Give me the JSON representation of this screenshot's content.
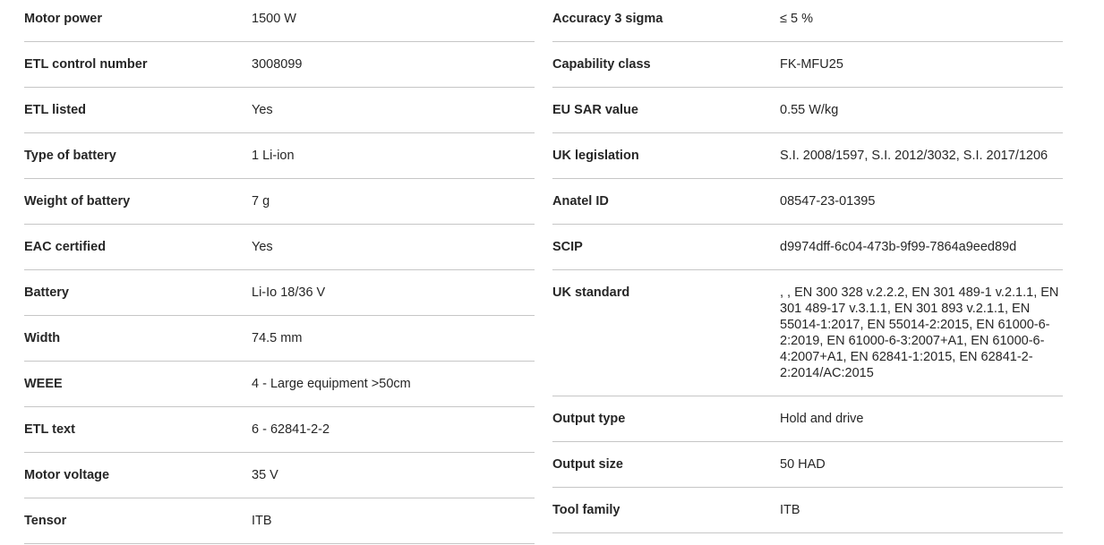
{
  "spec_table": {
    "left_rows": [
      {
        "label": "Motor power",
        "value": "1500 W"
      },
      {
        "label": "ETL control number",
        "value": "3008099"
      },
      {
        "label": "ETL listed",
        "value": "Yes"
      },
      {
        "label": "Type of battery",
        "value": "1 Li-ion"
      },
      {
        "label": "Weight of battery",
        "value": "7 g"
      },
      {
        "label": "EAC certified",
        "value": "Yes"
      },
      {
        "label": "Battery",
        "value": "Li-Io 18/36 V"
      },
      {
        "label": "Width",
        "value": "74.5 mm"
      },
      {
        "label": "WEEE",
        "value": "4 - Large equipment >50cm"
      },
      {
        "label": "ETL text",
        "value": "6 - 62841-2-2"
      },
      {
        "label": "Motor voltage",
        "value": "35 V"
      },
      {
        "label": "Tensor",
        "value": "ITB"
      }
    ],
    "right_rows": [
      {
        "label": "Accuracy 3 sigma",
        "value": "≤ 5 %"
      },
      {
        "label": "Capability class",
        "value": "FK-MFU25"
      },
      {
        "label": "EU SAR value",
        "value": "0.55 W/kg"
      },
      {
        "label": "UK legislation",
        "value": "S.I. 2008/1597, S.I. 2012/3032, S.I. 2017/1206"
      },
      {
        "label": "Anatel ID",
        "value": "08547-23-01395"
      },
      {
        "label": "SCIP",
        "value": "d9974dff-6c04-473b-9f99-7864a9eed89d"
      },
      {
        "label": "UK standard",
        "value": ", , EN 300 328 v.2.2.2, EN 301 489-1 v.2.1.1, EN 301 489-17 v.3.1.1, EN 301 893 v.2.1.1, EN 55014-1:2017, EN 55014-2:2015, EN 61000-6-2:2019, EN 61000-6-3:2007+A1, EN 61000-6-4:2007+A1, EN 62841-1:2015, EN 62841-2-2:2014/AC:2015"
      },
      {
        "label": "Output type",
        "value": "Hold and drive"
      },
      {
        "label": "Output size",
        "value": "50 HAD"
      },
      {
        "label": "Tool family",
        "value": "ITB"
      }
    ],
    "colors": {
      "text": "#262626",
      "divider": "#c6c6c6",
      "background": "#ffffff"
    }
  }
}
